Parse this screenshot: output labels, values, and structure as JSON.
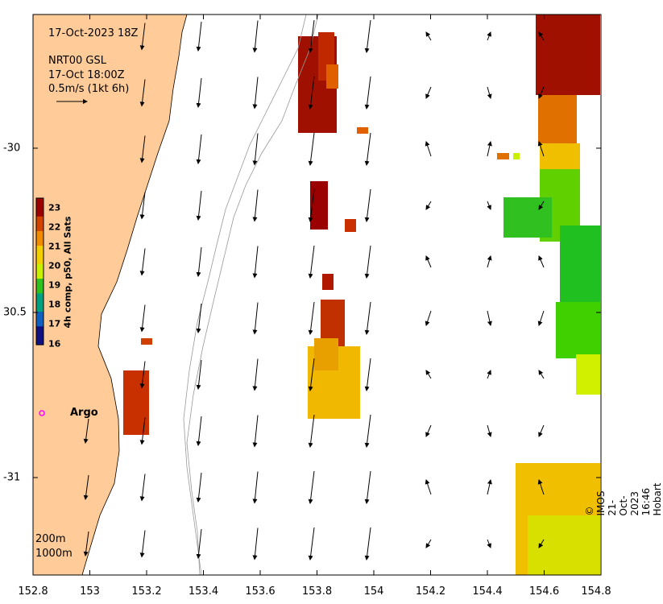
{
  "map": {
    "date_title": "17-Oct-2023 18Z",
    "product": "NRT00 GSL",
    "time": "17-Oct 18:00Z",
    "scale_label": "0.5m/s (1kt 6h)",
    "argo_label": "Argo",
    "credit": "© IMOS 21-Oct-2023 16:46 Hobart",
    "depth_contours": [
      "200m",
      "1000m"
    ],
    "x_ticks": [
      "152.8",
      "153",
      "153.2",
      "153.4",
      "153.6",
      "153.8",
      "154",
      "154.2",
      "154.4",
      "154.6",
      "154.8"
    ],
    "y_ticks": [
      "-30",
      "30.5",
      "-31"
    ]
  },
  "colorbar": {
    "title": "4h comp, p50, All Sats",
    "ticks": [
      "23",
      "22",
      "21",
      "20",
      "19",
      "18",
      "17",
      "16"
    ],
    "colors": [
      "#9a0000",
      "#d04400",
      "#f08c00",
      "#f2d000",
      "#c8f000",
      "#30c020",
      "#00a080",
      "#1060c0",
      "#101080"
    ]
  },
  "colors": {
    "land": "#ffcc99",
    "ocean": "#ffffff",
    "argo_marker": "#ff00ff"
  }
}
